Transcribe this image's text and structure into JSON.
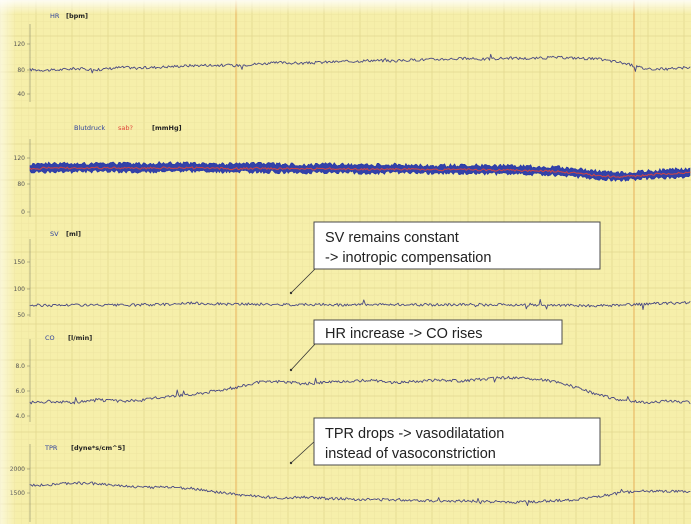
{
  "colors": {
    "background": "#f6efaa",
    "grid_minor": "#ede4a0",
    "grid_major": "#e2d78f",
    "marker_line": "#e8b25a",
    "trace": "#4a4a82",
    "bp_band": "#2233a8",
    "bp_core": "#e0453a"
  },
  "chart_data": [
    {
      "type": "line",
      "panel": "hr",
      "title": "HR",
      "unit": "[bpm]",
      "y_ticks": [
        "120",
        "80",
        "40"
      ],
      "ylim": [
        20,
        140
      ],
      "series": [
        {
          "values": [
            72,
            71,
            74,
            72,
            76,
            75,
            77,
            79,
            80,
            79,
            82,
            84,
            83,
            85,
            86,
            88,
            87,
            89,
            90,
            91,
            90,
            92,
            91,
            93,
            92,
            90,
            84,
            74,
            73,
            76
          ]
        }
      ]
    },
    {
      "type": "area",
      "panel": "bp",
      "title": "Blutdruck",
      "title_accent": "sab?",
      "unit": "[mmHg]",
      "y_ticks": [
        "120",
        "80",
        "0"
      ],
      "ylim": [
        -20,
        140
      ],
      "series": [
        {
          "name": "band_high",
          "values": [
            96,
            98,
            97,
            99,
            98,
            97,
            99,
            98,
            97,
            96,
            97,
            96,
            95,
            96,
            95,
            94,
            95,
            94,
            93,
            94,
            93,
            92,
            91,
            90,
            86,
            80,
            76,
            80,
            84,
            85
          ]
        },
        {
          "name": "band_low",
          "values": [
            78,
            80,
            79,
            80,
            79,
            79,
            80,
            80,
            79,
            78,
            79,
            78,
            77,
            78,
            77,
            76,
            77,
            76,
            75,
            76,
            75,
            74,
            73,
            72,
            68,
            62,
            60,
            63,
            66,
            67
          ]
        },
        {
          "name": "core",
          "values": [
            86,
            88,
            87,
            88,
            87,
            87,
            88,
            88,
            87,
            86,
            87,
            86,
            85,
            86,
            85,
            84,
            85,
            84,
            83,
            84,
            83,
            82,
            81,
            80,
            76,
            70,
            67,
            71,
            75,
            76
          ]
        }
      ]
    },
    {
      "type": "line",
      "panel": "sv",
      "title": "SV",
      "unit": "[ml]",
      "y_ticks": [
        "150",
        "100",
        "50"
      ],
      "ylim": [
        40,
        170
      ],
      "series": [
        {
          "values": [
            58,
            58,
            59,
            58,
            58,
            59,
            60,
            62,
            61,
            60,
            60,
            59,
            60,
            59,
            59,
            59,
            60,
            59,
            59,
            60,
            59,
            59,
            58,
            58,
            58,
            57,
            58,
            60,
            62,
            63
          ]
        }
      ]
    },
    {
      "type": "line",
      "panel": "co",
      "title": "CO",
      "unit": "[l/min]",
      "y_ticks": [
        "8.0",
        "6.0",
        "4.0"
      ],
      "ylim": [
        3.0,
        9.0
      ],
      "series": [
        {
          "values": [
            4.4,
            4.5,
            4.4,
            4.6,
            4.5,
            4.6,
            4.9,
            5.0,
            5.3,
            5.6,
            6.0,
            6.1,
            5.9,
            6.0,
            6.1,
            6.2,
            6.0,
            6.1,
            6.2,
            6.1,
            6.3,
            6.4,
            6.3,
            6.1,
            5.6,
            5.0,
            4.6,
            4.4,
            4.5,
            4.4
          ]
        }
      ]
    },
    {
      "type": "line",
      "panel": "tpr",
      "title": "TPR",
      "unit": "[dyne*s/cm^5]",
      "y_ticks": [
        "2000",
        "1500"
      ],
      "ylim": [
        1200,
        2300
      ],
      "series": [
        {
          "values": [
            1740,
            1760,
            1780,
            1770,
            1740,
            1710,
            1720,
            1700,
            1650,
            1600,
            1570,
            1550,
            1560,
            1540,
            1530,
            1520,
            1520,
            1510,
            1500,
            1500,
            1490,
            1480,
            1490,
            1500,
            1520,
            1570,
            1630,
            1660,
            1650,
            1640
          ]
        }
      ]
    }
  ],
  "annotations": [
    {
      "lines": [
        "SV remains constant",
        "-> inotropic compensation"
      ]
    },
    {
      "lines": [
        "HR increase -> CO rises"
      ]
    },
    {
      "lines": [
        "TPR drops -> vasodilatation",
        "instead of vasoconstriction"
      ]
    }
  ]
}
